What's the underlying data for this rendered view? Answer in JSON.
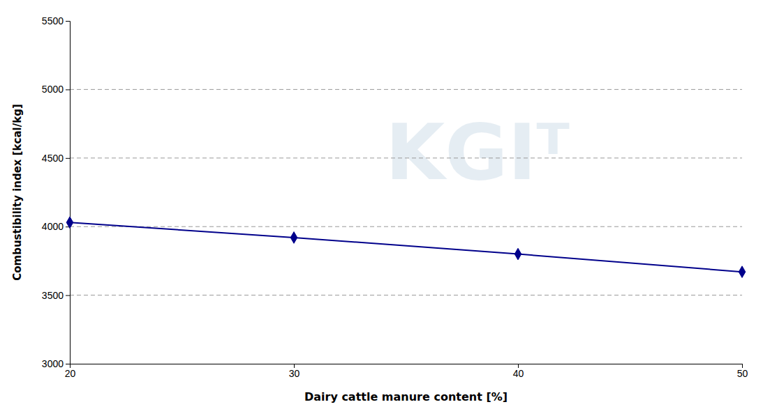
{
  "chart_data": {
    "type": "line",
    "xlabel": "Dairy cattle manure content [%]",
    "ylabel": "Combustibility index [kcal/kg]",
    "x": [
      20,
      30,
      40,
      50
    ],
    "values": [
      4030,
      3920,
      3800,
      3670
    ],
    "color": "#00008B",
    "marker": "diamond",
    "xlim": [
      20,
      50
    ],
    "xticks": [
      20,
      30,
      40,
      50
    ],
    "ylim": [
      3000,
      5500
    ],
    "yticks": [
      3000,
      3500,
      4000,
      4500,
      5000,
      5500
    ],
    "grid": true,
    "annotations": [
      "KGIᵀ"
    ]
  }
}
